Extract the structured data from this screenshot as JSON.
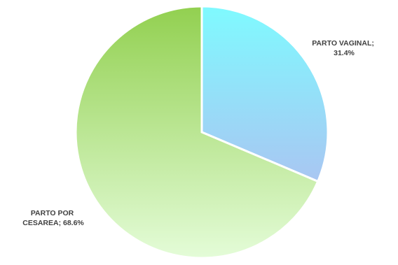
{
  "chart_data": {
    "type": "pie",
    "title": "",
    "slices": [
      {
        "label_lines": [
          "PARTO VAGINAL;",
          "31.4%"
        ],
        "category": "PARTO VAGINAL",
        "value": 31.4,
        "colors": [
          "#7FFAFF",
          "#A9C6F2"
        ]
      },
      {
        "label_lines": [
          "PARTO POR",
          "CESAREA; 68.6%"
        ],
        "category": "PARTO POR CESAREA",
        "value": 68.6,
        "colors": [
          "#92D050",
          "#E4FCD8"
        ]
      }
    ],
    "legend": "none"
  }
}
